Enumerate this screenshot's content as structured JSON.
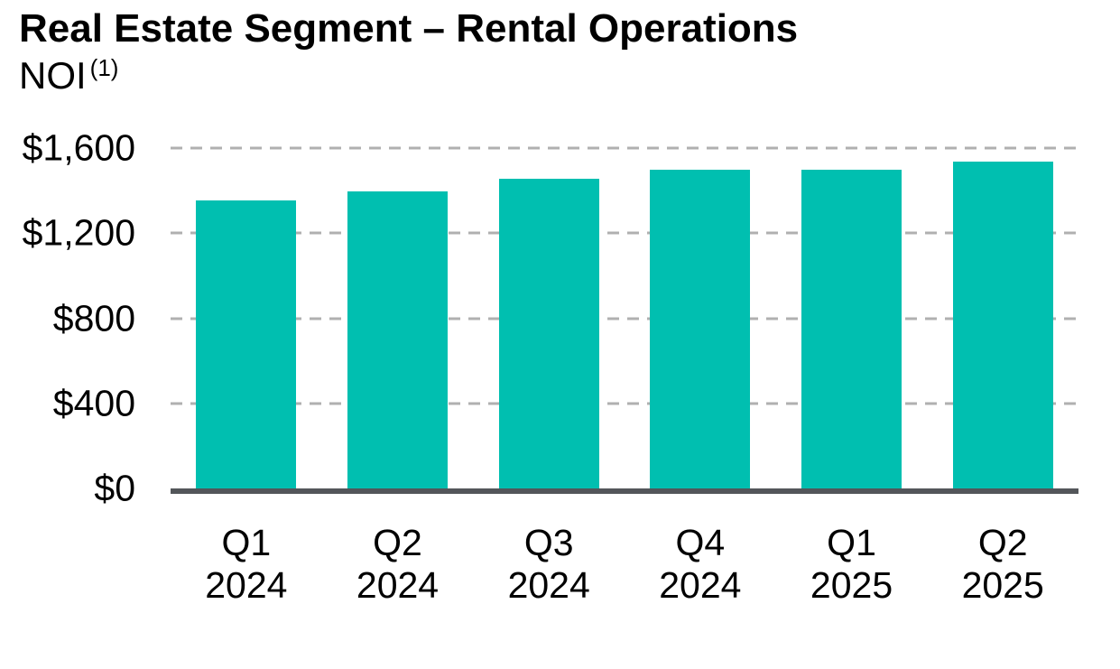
{
  "header": {
    "title": "Real Estate Segment – Rental Operations",
    "subtitle": "NOI",
    "footnote_marker": "(1)"
  },
  "chart_data": {
    "type": "bar",
    "title": "Real Estate Segment – Rental Operations — NOI (1)",
    "categories": [
      "Q1 2024",
      "Q2 2024",
      "Q3 2024",
      "Q4 2024",
      "Q1 2025",
      "Q2 2025"
    ],
    "values": [
      1355,
      1395,
      1455,
      1500,
      1500,
      1535
    ],
    "xlabel": "",
    "ylabel": "",
    "ylim": [
      0,
      1600
    ],
    "y_ticks": [
      0,
      400,
      800,
      1200,
      1600
    ],
    "y_tick_labels": [
      "$0",
      "$400",
      "$800",
      "$1,200",
      "$1,600"
    ],
    "grid": "horizontal-dashed",
    "legend": "none",
    "colors": {
      "bar": "#00BFB0",
      "axis_line": "#53565A",
      "gridline": "#B0B0B0",
      "text": "#000000"
    }
  }
}
